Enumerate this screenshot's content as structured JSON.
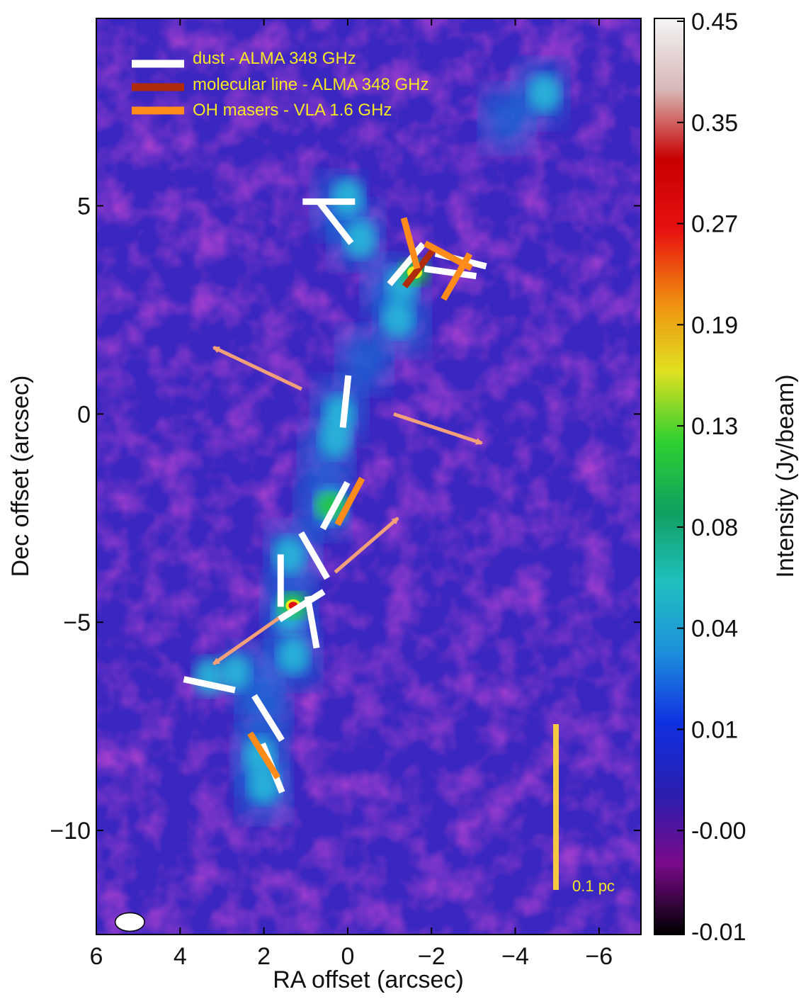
{
  "chart_data": {
    "type": "heatmap",
    "xlabel": "RA offset (arcsec)",
    "ylabel": "Dec offset (arcsec)",
    "xlim": [
      6,
      -7
    ],
    "ylim": [
      -12.5,
      9.5
    ],
    "xticks": [
      6,
      4,
      2,
      0,
      -2,
      -4,
      -6
    ],
    "xtick_labels": [
      "6",
      "4",
      "2",
      "0",
      "−2",
      "−4",
      "−6"
    ],
    "yticks": [
      5,
      0,
      -5,
      -10
    ],
    "ytick_labels": [
      "5",
      "0",
      "−5",
      "−10"
    ],
    "colorbar": {
      "label": "Intensity (Jy/beam)",
      "ticks": [
        0.45,
        0.35,
        0.27,
        0.19,
        0.13,
        0.08,
        0.04,
        0.01,
        -0.0,
        -0.01
      ],
      "tick_labels": [
        "0.45",
        "0.35",
        "0.27",
        "0.19",
        "0.13",
        "0.08",
        "0.04",
        "0.01",
        "-0.00",
        "-0.01"
      ],
      "colormap": [
        "#000000",
        "#7a0a8a",
        "#2a1fb0",
        "#1030e0",
        "#1d8fdc",
        "#20c0c0",
        "#10a060",
        "#30d030",
        "#e0e020",
        "#f08c10",
        "#e81010",
        "#c80000",
        "#d8b8b8",
        "#f4f4f4"
      ]
    },
    "legend": {
      "placement": "top-left",
      "entries": [
        {
          "label": "dust - ALMA  348 GHz",
          "color": "#ffffff"
        },
        {
          "label": "molecular line - ALMA 348 GHz",
          "color": "#b02a0c"
        },
        {
          "label": "OH masers - VLA  1.6 GHz",
          "color": "#ff8c1a"
        }
      ]
    },
    "scale_bar": {
      "label": "0.1 pc",
      "color": "#f5c842"
    },
    "emission_sources": [
      {
        "x": 1.3,
        "y": -4.6,
        "peak": 0.42
      },
      {
        "x": -1.6,
        "y": 3.4,
        "peak": 0.22
      },
      {
        "x": 0.4,
        "y": -2.2,
        "peak": 0.12
      },
      {
        "x": 0.1,
        "y": 0.1,
        "peak": 0.06
      },
      {
        "x": 2.1,
        "y": -8.2,
        "peak": 0.04
      },
      {
        "x": 3.3,
        "y": -6.3,
        "peak": 0.04
      },
      {
        "x": -4.8,
        "y": 7.6,
        "peak": 0.02
      }
    ],
    "vectors": [
      {
        "kind": "dust",
        "x": 0.45,
        "y": 5.1,
        "pa": 90
      },
      {
        "kind": "dust",
        "x": 0.3,
        "y": 4.6,
        "pa": 38
      },
      {
        "kind": "dust",
        "x": -1.4,
        "y": 3.6,
        "pa": -40
      },
      {
        "kind": "dust",
        "x": -2.7,
        "y": 3.7,
        "pa": 76
      },
      {
        "kind": "dust",
        "x": -2.45,
        "y": 3.4,
        "pa": 82
      },
      {
        "kind": "dust",
        "x": 0.05,
        "y": 0.3,
        "pa": -6
      },
      {
        "kind": "dust",
        "x": 0.3,
        "y": -2.2,
        "pa": -28
      },
      {
        "kind": "dust",
        "x": 0.8,
        "y": -3.4,
        "pa": 30
      },
      {
        "kind": "dust",
        "x": 1.6,
        "y": -4.0,
        "pa": 0
      },
      {
        "kind": "dust",
        "x": 1.1,
        "y": -4.6,
        "pa": -58
      },
      {
        "kind": "dust",
        "x": 0.85,
        "y": -5.0,
        "pa": 10
      },
      {
        "kind": "dust",
        "x": 3.3,
        "y": -6.5,
        "pa": 78
      },
      {
        "kind": "dust",
        "x": 1.9,
        "y": -7.3,
        "pa": 32
      },
      {
        "kind": "dust",
        "x": 1.8,
        "y": -8.5,
        "pa": 22
      },
      {
        "kind": "line",
        "x": -1.7,
        "y": 3.5,
        "pa": -38
      },
      {
        "kind": "oh",
        "x": -1.5,
        "y": 4.1,
        "pa": 15
      },
      {
        "kind": "oh",
        "x": -2.4,
        "y": 3.8,
        "pa": 62
      },
      {
        "kind": "oh",
        "x": -2.6,
        "y": 3.3,
        "pa": -30
      },
      {
        "kind": "oh",
        "x": -0.05,
        "y": -2.1,
        "pa": -28
      },
      {
        "kind": "oh",
        "x": 2.0,
        "y": -8.2,
        "pa": 32
      }
    ],
    "outflow_arrows": [
      {
        "from": [
          1.1,
          0.6
        ],
        "to": [
          3.2,
          1.6
        ]
      },
      {
        "from": [
          -1.1,
          0.0
        ],
        "to": [
          -3.2,
          -0.7
        ]
      },
      {
        "from": [
          0.3,
          -3.8
        ],
        "to": [
          -1.2,
          -2.5
        ]
      },
      {
        "from": [
          1.5,
          -4.8
        ],
        "to": [
          3.2,
          -6.0
        ]
      }
    ],
    "beam": {
      "x": 5.2,
      "y": -12.2,
      "major": 0.35,
      "minor": 0.22
    }
  }
}
